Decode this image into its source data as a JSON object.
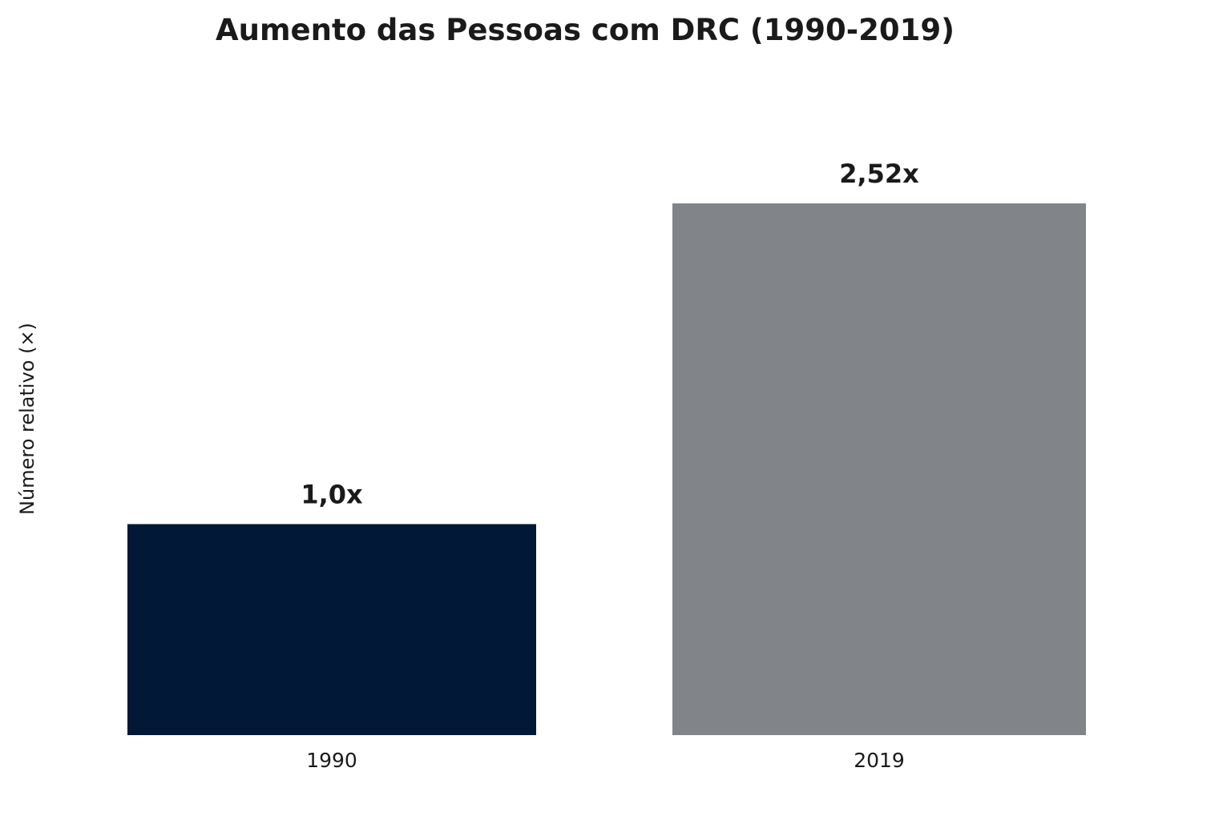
{
  "chart_data": {
    "type": "bar",
    "title": "Aumento das Pessoas com DRC (1990-2019)",
    "xlabel": "",
    "ylabel": "Número relativo (×)",
    "categories": [
      "1990",
      "2019"
    ],
    "values": [
      1.0,
      2.52
    ],
    "data_labels": [
      "1,0x",
      "2,52x"
    ],
    "colors": [
      "#011836",
      "#818488"
    ],
    "ylim": [
      0,
      2.9
    ],
    "grid": false,
    "legend": "none"
  }
}
